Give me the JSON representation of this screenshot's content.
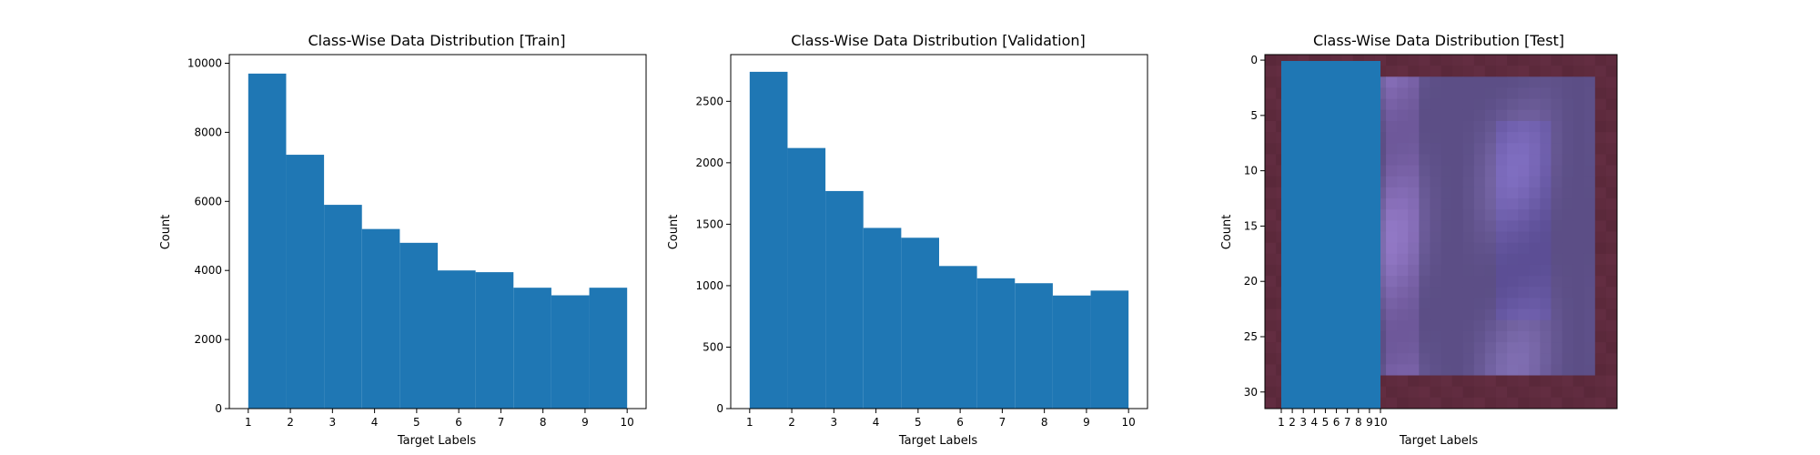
{
  "chart_data": [
    {
      "type": "bar",
      "title": "Class-Wise Data Distribution [Train]",
      "xlabel": "Target Labels",
      "ylabel": "Count",
      "xlim": [
        0.55,
        10.45
      ],
      "ylim": [
        0,
        10250
      ],
      "xticks": [
        "1",
        "2",
        "3",
        "4",
        "5",
        "6",
        "7",
        "8",
        "9",
        "10"
      ],
      "yticks": [
        "0",
        "2000",
        "4000",
        "6000",
        "8000",
        "10000"
      ],
      "bin_edges": [
        1.0,
        1.9,
        2.8,
        3.7,
        4.6,
        5.5,
        6.4,
        7.3,
        8.2,
        9.1,
        10.0
      ],
      "values": [
        9700,
        7350,
        5900,
        5200,
        4800,
        4000,
        3950,
        3500,
        3280,
        3500
      ],
      "color": "#1f77b4",
      "grid": false
    },
    {
      "type": "bar",
      "title": "Class-Wise Data Distribution [Validation]",
      "xlabel": "Target Labels",
      "ylabel": "Count",
      "xlim": [
        0.55,
        10.45
      ],
      "ylim": [
        0,
        2880
      ],
      "xticks": [
        "1",
        "2",
        "3",
        "4",
        "5",
        "6",
        "7",
        "8",
        "9",
        "10"
      ],
      "yticks": [
        "0",
        "500",
        "1000",
        "1500",
        "2000",
        "2500"
      ],
      "bin_edges": [
        1.0,
        1.9,
        2.8,
        3.7,
        4.6,
        5.5,
        6.4,
        7.3,
        8.2,
        9.1,
        10.0
      ],
      "values": [
        2740,
        2120,
        1770,
        1470,
        1390,
        1160,
        1060,
        1020,
        920,
        960
      ],
      "color": "#1f77b4",
      "grid": false
    },
    {
      "type": "heatmap",
      "title": "Class-Wise Data Distribution [Test]",
      "xlabel": "Target Labels",
      "ylabel": "Count",
      "ylim": [
        31.5,
        -0.5
      ],
      "xlim": [
        -0.5,
        31.5
      ],
      "yticks": [
        "0",
        "5",
        "10",
        "15",
        "20",
        "25",
        "30"
      ],
      "xticks": [
        "1",
        "2",
        "3",
        "4",
        "5",
        "6",
        "7",
        "8",
        "9",
        "10"
      ],
      "overlay_bar": {
        "x_range": [
          1,
          10
        ],
        "color": "#1f77b4"
      },
      "grid": false
    }
  ]
}
